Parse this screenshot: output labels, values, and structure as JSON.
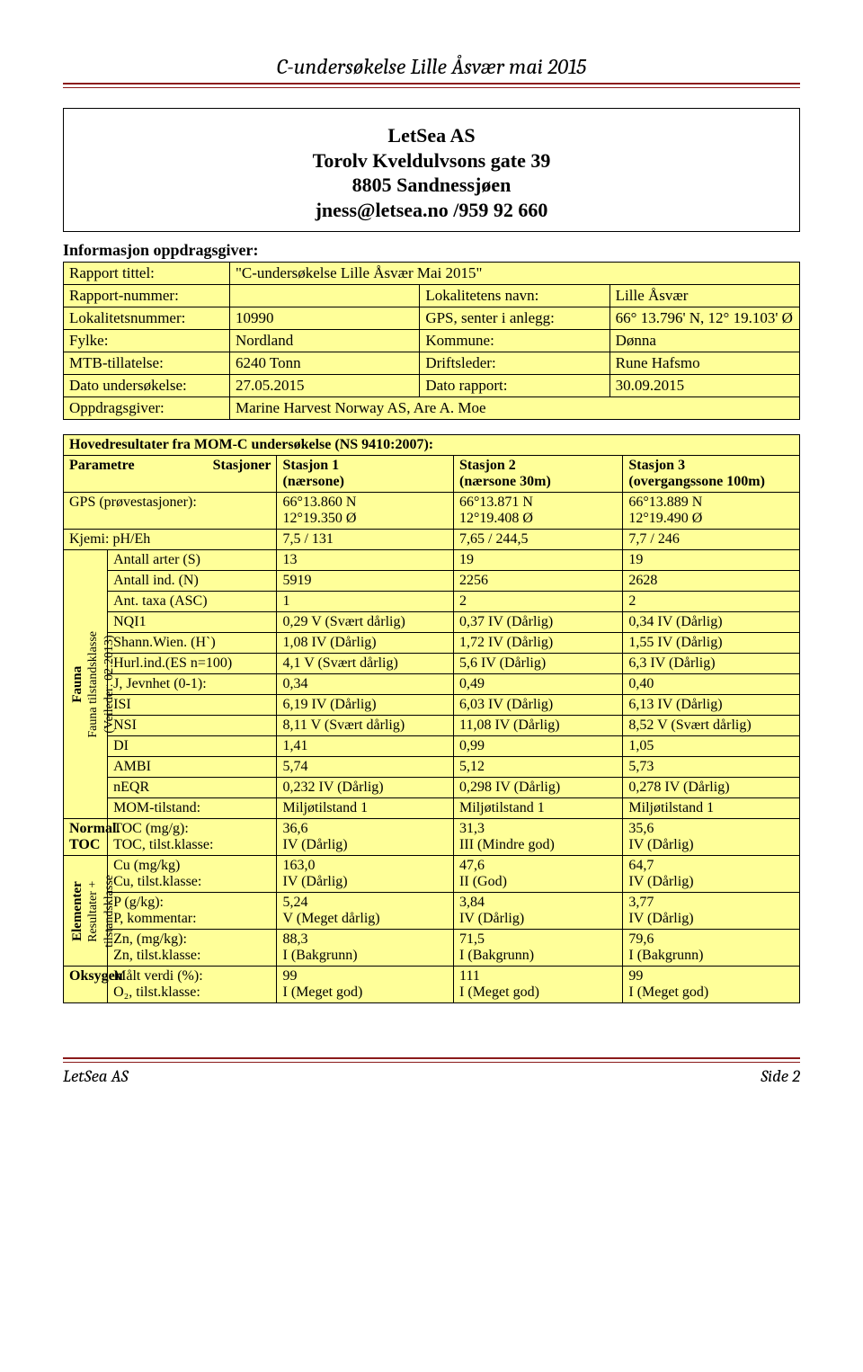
{
  "doc": {
    "title": "C-undersøkelse Lille Åsvær mai 2015",
    "footer_left": "LetSea AS",
    "footer_right": "Side 2"
  },
  "header": {
    "l1": "LetSea AS",
    "l2": "Torolv Kveldulvsons gate 39",
    "l3": "8805 Sandnessjøen",
    "l4": "jness@letsea.no /959 92 660"
  },
  "info": {
    "section": "Informasjon oppdragsgiver:",
    "rows": [
      {
        "a": "Rapport tittel:",
        "b": "\"C-undersøkelse Lille Åsvær Mai 2015\"",
        "c": "",
        "d": ""
      },
      {
        "a": "Rapport-nummer:",
        "b": "",
        "c": "Lokalitetens navn:",
        "d": "Lille Åsvær"
      },
      {
        "a": "Lokalitetsnummer:",
        "b": "10990",
        "c": "GPS, senter i anlegg:",
        "d": "66° 13.796' N, 12° 19.103' Ø"
      },
      {
        "a": "Fylke:",
        "b": "Nordland",
        "c": "Kommune:",
        "d": "Dønna"
      },
      {
        "a": "MTB-tillatelse:",
        "b": "6240 Tonn",
        "c": "Driftsleder:",
        "d": "Rune Hafsmo"
      },
      {
        "a": "Dato undersøkelse:",
        "b": "27.05.2015",
        "c": "Dato rapport:",
        "d": "30.09.2015"
      },
      {
        "a": "Oppdragsgiver:",
        "b": "Marine Harvest Norway AS, Are A. Moe",
        "c": "",
        "d": ""
      }
    ]
  },
  "results": {
    "section": "Hovedresultater fra MOM-C undersøkelse (NS 9410:2007):",
    "head": {
      "param_top": "Stasjoner",
      "param_bottom": "Parametre",
      "s1": "Stasjon 1\n(nærsone)",
      "s2": "Stasjon 2\n(nærsone 30m)",
      "s3": "Stasjon 3\n(overgangssone 100m)"
    },
    "top_rows": [
      {
        "lbl": "GPS (prøvestasjoner):",
        "v1": "66°13.860 N\n12°19.350 Ø",
        "v2": "66°13.871 N\n12°19.408 Ø",
        "v3": "66°13.889 N\n12°19.490 Ø"
      },
      {
        "lbl": "Kjemi: pH/Eh",
        "v1": "7,5 / 131",
        "v2": "7,65 / 244,5",
        "v3": "7,7 / 246"
      }
    ],
    "fauna": {
      "side_main": "Fauna",
      "side_sub1": "Fauna tilstandsklasse",
      "side_sub2": "(Veileder: 02:2013)",
      "rows": [
        {
          "lbl": "Antall arter (S)",
          "v1": "13",
          "v2": "19",
          "v3": "19"
        },
        {
          "lbl": "Antall ind. (N)",
          "v1": "5919",
          "v2": "2256",
          "v3": "2628"
        },
        {
          "lbl": "Ant. taxa (ASC)",
          "v1": "1",
          "v2": "2",
          "v3": "2"
        },
        {
          "lbl": "NQI1",
          "v1": "0,29 V (Svært dårlig)",
          "v2": "0,37 IV (Dårlig)",
          "v3": "0,34 IV (Dårlig)"
        },
        {
          "lbl": "Shann.Wien. (H`)",
          "v1": "1,08 IV (Dårlig)",
          "v2": "1,72 IV (Dårlig)",
          "v3": "1,55 IV (Dårlig)"
        },
        {
          "lbl": "Hurl.ind.(ES n=100)",
          "v1": "4,1 V (Svært dårlig)",
          "v2": "5,6 IV (Dårlig)",
          "v3": "6,3 IV (Dårlig)"
        },
        {
          "lbl": "J, Jevnhet (0-1):",
          "v1": "0,34",
          "v2": "0,49",
          "v3": "0,40"
        },
        {
          "lbl": "ISI",
          "v1": "6,19 IV (Dårlig)",
          "v2": "6,03 IV (Dårlig)",
          "v3": "6,13 IV (Dårlig)"
        },
        {
          "lbl": "NSI",
          "v1": "8,11 V (Svært dårlig)",
          "v2": "11,08 IV (Dårlig)",
          "v3": "8,52 V (Svært dårlig)"
        },
        {
          "lbl": "DI",
          "v1": "1,41",
          "v2": "0,99",
          "v3": "1,05"
        },
        {
          "lbl": "AMBI",
          "v1": "5,74",
          "v2": "5,12",
          "v3": "5,73"
        },
        {
          "lbl": "nEQR",
          "v1": "0,232 IV (Dårlig)",
          "v2": "0,298 IV (Dårlig)",
          "v3": "0,278 IV (Dårlig)"
        },
        {
          "lbl": "MOM-tilstand:",
          "v1": "Miljøtilstand 1",
          "v2": "Miljøtilstand 1",
          "v3": "Miljøtilstand 1"
        }
      ]
    },
    "toc": {
      "side": "Normal.\nTOC",
      "lbl": "TOC (mg/g):\nTOC, tilst.klasse:",
      "v1": "36,6\nIV (Dårlig)",
      "v2": "31,3\nIII (Mindre god)",
      "v3": "35,6\nIV (Dårlig)"
    },
    "elem": {
      "side_main": "Elementer",
      "side_sub1": "Resultater +",
      "side_sub2": "tilstandsklasse",
      "rows": [
        {
          "lbl": "Cu (mg/kg)\nCu, tilst.klasse:",
          "v1": "163,0\nIV (Dårlig)",
          "v2": "47,6\nII (God)",
          "v3": "64,7\nIV (Dårlig)"
        },
        {
          "lbl": "P (g/kg):\nP, kommentar:",
          "v1": "5,24\nV (Meget dårlig)",
          "v2": "3,84\nIV (Dårlig)",
          "v3": "3,77\nIV (Dårlig)"
        },
        {
          "lbl": "Zn, (mg/kg):\nZn, tilst.klasse:",
          "v1": "88,3\nI (Bakgrunn)",
          "v2": "71,5\nI (Bakgrunn)",
          "v3": "79,6\nI (Bakgrunn)"
        }
      ]
    },
    "oksygen": {
      "side": "Oksygen",
      "lbl": "Målt verdi (%):\nO₂, tilst.klasse:",
      "v1": "99\nI (Meget god)",
      "v2": "111\nI (Meget god)",
      "v3": "99\nI (Meget god)"
    }
  },
  "colors": {
    "cell_bg": "#ffff99",
    "rule": "#8b1a1a"
  }
}
